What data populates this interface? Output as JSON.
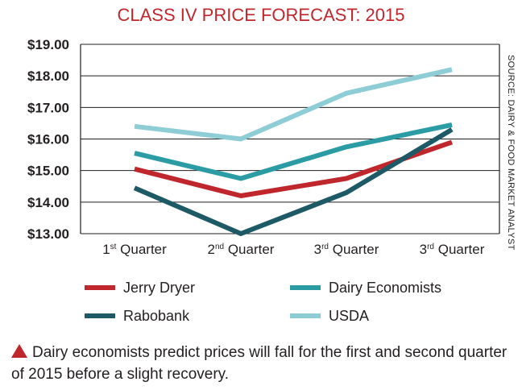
{
  "chart_data": {
    "type": "line",
    "title": "CLASS IV PRICE FORECAST: 2015",
    "source_note": "SOURCE: DAIRY & FOOD MARKET ANALYST",
    "categories": [
      {
        "base": "1",
        "sup": "st",
        "rest": " Quarter"
      },
      {
        "base": "2",
        "sup": "nd",
        "rest": " Quarter"
      },
      {
        "base": "3",
        "sup": "rd",
        "rest": " Quarter"
      },
      {
        "base": "3",
        "sup": "rd",
        "rest": " Quarter"
      }
    ],
    "yticks": [
      "$19.00",
      "$18.00",
      "$17.00",
      "$16.00",
      "$15.00",
      "$14.00",
      "$13.00"
    ],
    "ylim": [
      13,
      19
    ],
    "grid": "horizontal",
    "legend_position": "bottom",
    "series": [
      {
        "name": "Jerry Dryer",
        "color": "#c0272d",
        "values": [
          15.05,
          14.2,
          14.75,
          15.9
        ]
      },
      {
        "name": "Dairy Economists",
        "color": "#2b9ca4",
        "values": [
          15.55,
          14.75,
          15.75,
          16.45
        ]
      },
      {
        "name": "Rabobank",
        "color": "#1e5a66",
        "values": [
          14.45,
          13.0,
          14.3,
          16.3
        ]
      },
      {
        "name": "USDA",
        "color": "#8fcdd6",
        "values": [
          16.4,
          16.0,
          17.45,
          18.2
        ]
      }
    ]
  },
  "caption": {
    "icon": "triangle-up-icon",
    "text": "Dairy economists predict prices will fall for the first and second quarter of 2015 before a slight recovery."
  }
}
